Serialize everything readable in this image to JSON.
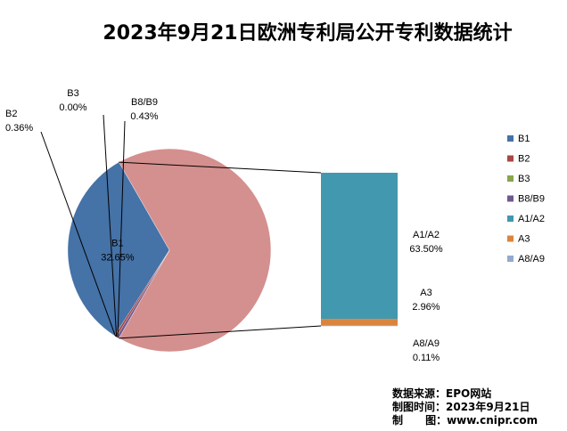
{
  "chart_data": {
    "type": "pie",
    "subtype": "pie-of-bar",
    "title": "2023年9月21日欧洲专利局公开专利数据统计",
    "categories": [
      "B1",
      "B2",
      "B3",
      "B8/B9",
      "A1/A2",
      "A3",
      "A8/A9"
    ],
    "values": [
      32.65,
      0.36,
      0.0,
      0.43,
      63.5,
      2.96,
      0.11
    ],
    "value_labels": [
      "32.65%",
      "0.36%",
      "0.00%",
      "0.43%",
      "63.50%",
      "2.96%",
      "0.11%"
    ],
    "bar_group": [
      "A1/A2",
      "A3",
      "A8/A9"
    ],
    "colors": [
      "#4572A7",
      "#AA4643",
      "#89A54E",
      "#71588F",
      "#4198AF",
      "#DB843D",
      "#93A9CF"
    ],
    "legend_position": "right"
  },
  "source_lines": [
    "数据来源：EPO网站",
    "制图时间：2023年9月21日",
    "制      图：www.cnipr.com"
  ]
}
